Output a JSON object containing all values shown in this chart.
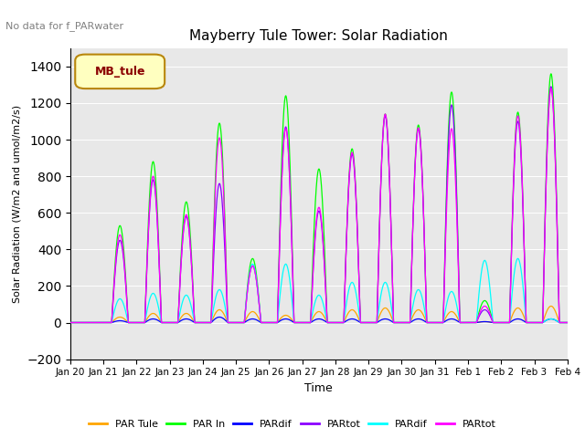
{
  "title": "Mayberry Tule Tower: Solar Radiation",
  "subtitle": "No data for f_PARwater",
  "ylabel": "Solar Radiation (W/m2 and umol/m2/s)",
  "xlabel": "Time",
  "legend_label": "MB_tule",
  "ylim": [
    -200,
    1500
  ],
  "series": [
    {
      "label": "PAR Tule",
      "color": "#FFA500"
    },
    {
      "label": "PAR In",
      "color": "#00FF00"
    },
    {
      "label": "PARdif",
      "color": "#0000FF"
    },
    {
      "label": "PARtot",
      "color": "#8B00FF"
    },
    {
      "label": "PARdif",
      "color": "#00FFFF"
    },
    {
      "label": "PARtot",
      "color": "#FF00FF"
    }
  ],
  "xticklabels": [
    "Jan 20",
    "Jan 21",
    "Jan 22",
    "Jan 23",
    "Jan 24",
    "Jan 25",
    "Jan 26",
    "Jan 27",
    "Jan 28",
    "Jan 29",
    "Jan 30",
    "Jan 31",
    "Feb 1",
    "Feb 2",
    "Feb 3",
    "Feb 4"
  ],
  "plot_bgcolor": "#E8E8E8",
  "peaks_PAR_Tule": [
    0,
    30,
    50,
    50,
    70,
    60,
    40,
    60,
    70,
    80,
    70,
    60,
    5,
    80,
    90,
    0
  ],
  "peaks_PAR_In": [
    0,
    530,
    880,
    660,
    1090,
    350,
    1240,
    840,
    950,
    1140,
    1080,
    1260,
    120,
    1150,
    1360,
    0
  ],
  "peaks_PARdif_blue": [
    0,
    10,
    20,
    20,
    30,
    20,
    20,
    20,
    20,
    20,
    20,
    20,
    5,
    20,
    20,
    0
  ],
  "peaks_PARtot_purp": [
    0,
    450,
    780,
    580,
    760,
    310,
    1070,
    610,
    920,
    1130,
    1060,
    1190,
    70,
    1100,
    1290,
    0
  ],
  "peaks_PARdif_cyan": [
    0,
    130,
    160,
    150,
    180,
    320,
    320,
    150,
    220,
    220,
    180,
    170,
    340,
    350,
    20,
    0
  ],
  "peaks_PARtot_mag": [
    0,
    480,
    800,
    590,
    1010,
    310,
    1060,
    630,
    930,
    1140,
    1065,
    1060,
    90,
    1130,
    1280,
    0
  ]
}
